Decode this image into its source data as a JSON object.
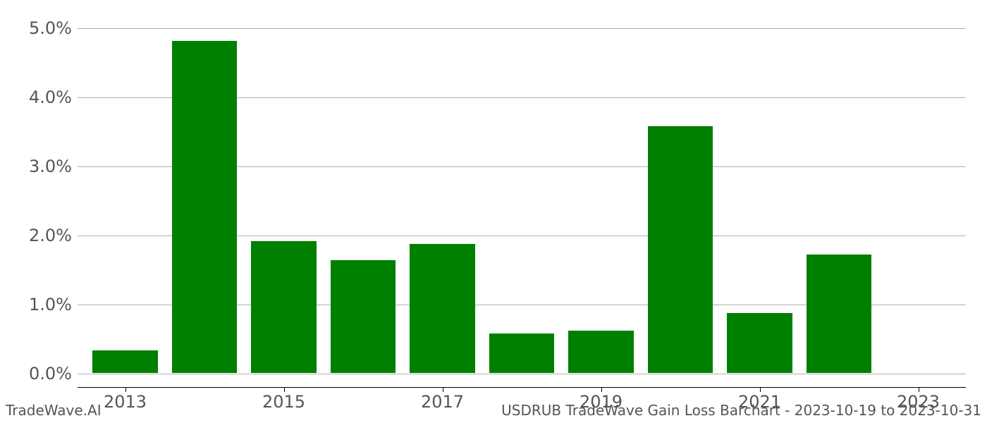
{
  "chart": {
    "type": "bar",
    "years": [
      2013,
      2014,
      2015,
      2016,
      2017,
      2018,
      2019,
      2020,
      2021,
      2022,
      2023
    ],
    "values": [
      0.33,
      4.8,
      1.91,
      1.63,
      1.87,
      0.58,
      0.62,
      3.57,
      0.87,
      1.72,
      0.0
    ],
    "bar_color": "#008000",
    "background_color": "#ffffff",
    "grid_color": "#b0b0b0",
    "yticks": [
      0.0,
      1.0,
      2.0,
      3.0,
      4.0,
      5.0
    ],
    "ytick_labels": [
      "0.0%",
      "1.0%",
      "2.0%",
      "3.0%",
      "4.0%",
      "5.0%"
    ],
    "xtick_years": [
      2013,
      2015,
      2017,
      2019,
      2021,
      2023
    ],
    "ymin": -0.2,
    "ymax": 5.1,
    "bar_width": 0.82,
    "axis_fontsize": 24,
    "footer_fontsize": 20,
    "tick_color": "#555555"
  },
  "footer": {
    "left": "TradeWave.AI",
    "right": "USDRUB TradeWave Gain Loss Barchart - 2023-10-19 to 2023-10-31"
  }
}
